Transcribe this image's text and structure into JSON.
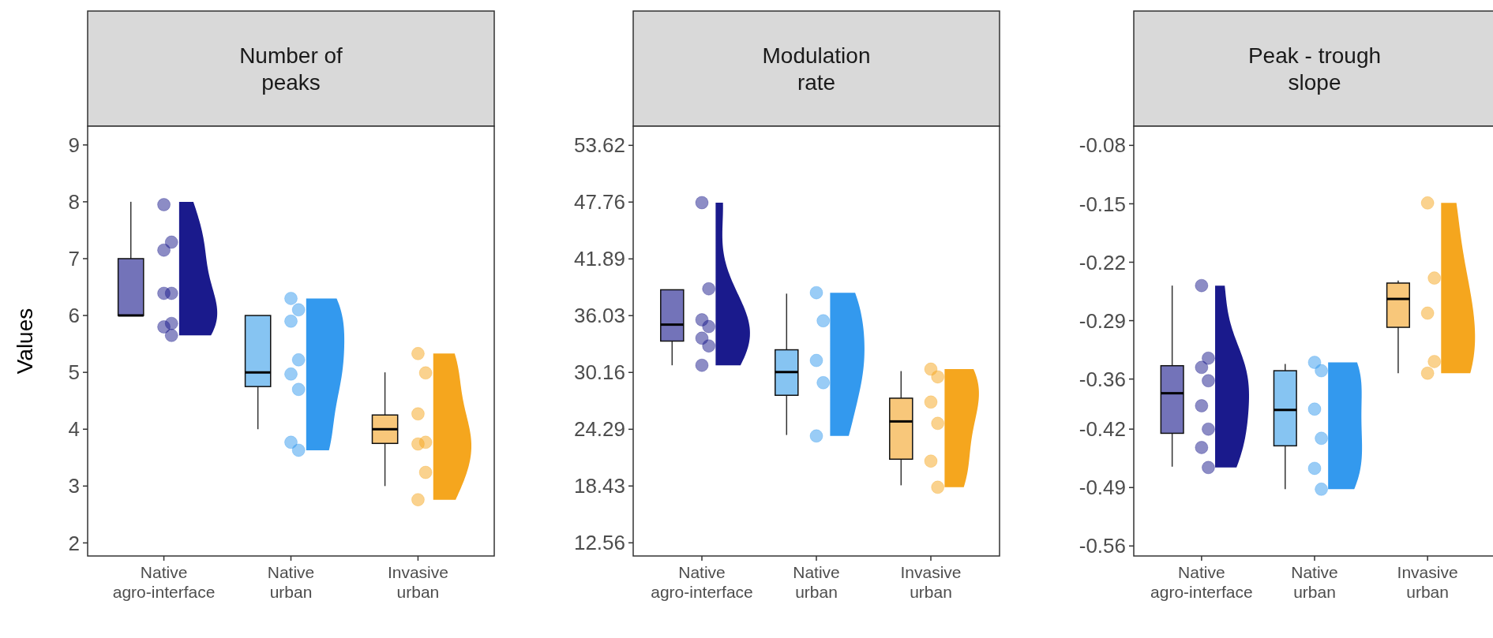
{
  "chart_data": [
    {
      "type": "box",
      "title": "Number of peaks",
      "ylabel": "Values",
      "categories": [
        "Native agro-interface",
        "Native urban",
        "Invasive urban"
      ],
      "ylim": [
        1.77,
        9.33
      ],
      "yticks": [
        2,
        3,
        4,
        5,
        6,
        7,
        8,
        9
      ],
      "grid": false,
      "series": [
        {
          "type": "box",
          "colors": [
            "#7373b9",
            "#86c4f2",
            "#f8c77a"
          ],
          "boxes": [
            {
              "low": 6,
              "q1": 6,
              "median": 6,
              "q3": 7,
              "high": 8
            },
            {
              "low": 4,
              "q1": 4.75,
              "median": 5,
              "q3": 6,
              "high": 6
            },
            {
              "low": 3,
              "q1": 3.75,
              "median": 4,
              "q3": 4.25,
              "high": 5
            }
          ]
        },
        {
          "type": "scatter",
          "color": "#1a1a8c",
          "x": [
            "Native agro-interface",
            "Native agro-interface",
            "Native agro-interface",
            "Native agro-interface",
            "Native agro-interface",
            "Native agro-interface",
            "Native agro-interface",
            "Native agro-interface"
          ],
          "values": [
            7.95,
            7.29,
            7.15,
            6.39,
            6.39,
            5.86,
            5.8,
            5.65
          ]
        },
        {
          "type": "scatter",
          "color": "#3399ee",
          "x": [
            "Native urban",
            "Native urban",
            "Native urban",
            "Native urban",
            "Native urban",
            "Native urban",
            "Native urban",
            "Native urban"
          ],
          "values": [
            6.3,
            6.1,
            5.9,
            5.22,
            4.97,
            4.7,
            3.77,
            3.63
          ]
        },
        {
          "type": "scatter",
          "color": "#f5a61e",
          "x": [
            "Invasive urban",
            "Invasive urban",
            "Invasive urban",
            "Invasive urban",
            "Invasive urban",
            "Invasive urban",
            "Invasive urban"
          ],
          "values": [
            5.33,
            4.99,
            4.27,
            3.77,
            3.74,
            3.24,
            2.76
          ]
        }
      ]
    },
    {
      "type": "box",
      "title": "Modulation rate",
      "categories": [
        "Native agro-interface",
        "Native urban",
        "Invasive urban"
      ],
      "ylim": [
        11.2,
        55.6
      ],
      "yticks": [
        12.56,
        18.43,
        24.29,
        30.16,
        36.03,
        41.89,
        47.76,
        53.62
      ],
      "grid": false,
      "series": [
        {
          "type": "box",
          "colors": [
            "#7373b9",
            "#86c4f2",
            "#f8c77a"
          ],
          "boxes": [
            {
              "low": 30.9,
              "q1": 33.4,
              "median": 35.1,
              "q3": 38.7,
              "high": 38.7
            },
            {
              "low": 23.7,
              "q1": 27.8,
              "median": 30.2,
              "q3": 32.5,
              "high": 38.3
            },
            {
              "low": 18.5,
              "q1": 21.2,
              "median": 25.1,
              "q3": 27.5,
              "high": 30.3
            }
          ]
        },
        {
          "type": "scatter",
          "color": "#1a1a8c",
          "x": [
            "Native agro-interface",
            "Native agro-interface",
            "Native agro-interface",
            "Native agro-interface",
            "Native agro-interface",
            "Native agro-interface",
            "Native agro-interface"
          ],
          "values": [
            47.7,
            38.8,
            35.6,
            34.9,
            33.7,
            32.9,
            30.9
          ]
        },
        {
          "type": "scatter",
          "color": "#3399ee",
          "x": [
            "Native urban",
            "Native urban",
            "Native urban",
            "Native urban",
            "Native urban"
          ],
          "values": [
            38.4,
            35.5,
            31.4,
            29.1,
            23.6
          ]
        },
        {
          "type": "scatter",
          "color": "#f5a61e",
          "x": [
            "Invasive urban",
            "Invasive urban",
            "Invasive urban",
            "Invasive urban",
            "Invasive urban",
            "Invasive urban"
          ],
          "values": [
            30.5,
            29.7,
            27.1,
            24.9,
            21.0,
            18.3
          ]
        }
      ]
    },
    {
      "type": "box",
      "title": "Peak - trough slope",
      "categories": [
        "Native agro-interface",
        "Native urban",
        "Invasive urban"
      ],
      "ylim": [
        -0.572,
        -0.057
      ],
      "yticks": [
        -0.56,
        -0.49,
        -0.42,
        -0.36,
        -0.29,
        -0.22,
        -0.15,
        -0.08
      ],
      "grid": false,
      "series": [
        {
          "type": "box",
          "colors": [
            "#7373b9",
            "#86c4f2",
            "#f8c77a"
          ],
          "boxes": [
            {
              "low": -0.465,
              "q1": -0.425,
              "median": -0.377,
              "q3": -0.344,
              "high": -0.248
            },
            {
              "low": -0.492,
              "q1": -0.44,
              "median": -0.397,
              "q3": -0.35,
              "high": -0.342
            },
            {
              "low": -0.353,
              "q1": -0.298,
              "median": -0.264,
              "q3": -0.245,
              "high": -0.242
            }
          ]
        },
        {
          "type": "scatter",
          "color": "#1a1a8c",
          "x": [
            "Native agro-interface",
            "Native agro-interface",
            "Native agro-interface",
            "Native agro-interface",
            "Native agro-interface",
            "Native agro-interface",
            "Native agro-interface",
            "Native agro-interface"
          ],
          "values": [
            -0.248,
            -0.335,
            -0.346,
            -0.362,
            -0.392,
            -0.42,
            -0.442,
            -0.466
          ]
        },
        {
          "type": "scatter",
          "color": "#3399ee",
          "x": [
            "Native urban",
            "Native urban",
            "Native urban",
            "Native urban",
            "Native urban",
            "Native urban"
          ],
          "values": [
            -0.34,
            -0.35,
            -0.396,
            -0.431,
            -0.467,
            -0.492
          ]
        },
        {
          "type": "scatter",
          "color": "#f5a61e",
          "x": [
            "Invasive urban",
            "Invasive urban",
            "Invasive urban",
            "Invasive urban",
            "Invasive urban"
          ],
          "values": [
            -0.149,
            -0.239,
            -0.281,
            -0.339,
            -0.353
          ]
        }
      ]
    }
  ]
}
